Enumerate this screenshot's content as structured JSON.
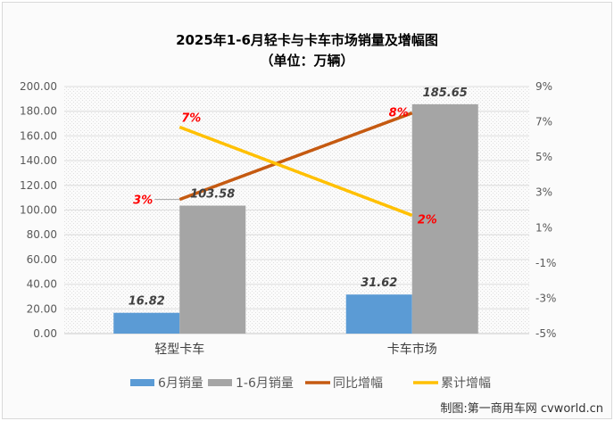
{
  "chart_data": {
    "type": "bar",
    "title": "2025年1-6月轻卡与卡车市场销量及增幅图",
    "subtitle": "（单位：万辆）",
    "categories": [
      "轻型卡车",
      "卡车市场"
    ],
    "ylim": [
      0,
      200
    ],
    "y_ticks": [
      "0.00",
      "20.00",
      "40.00",
      "60.00",
      "80.00",
      "100.00",
      "120.00",
      "140.00",
      "160.00",
      "180.00",
      "200.00"
    ],
    "y2lim": [
      -5,
      9
    ],
    "y2_ticks": [
      "-5%",
      "-3%",
      "-1%",
      "1%",
      "3%",
      "5%",
      "7%",
      "9%"
    ],
    "grid": true,
    "legend_position": "bottom",
    "series": [
      {
        "name": "6月销量",
        "kind": "bar",
        "axis": "left",
        "color": "#5b9bd5",
        "values": [
          16.82,
          31.62
        ],
        "labels": [
          "16.82",
          "31.62"
        ]
      },
      {
        "name": "1-6月销量",
        "kind": "bar",
        "axis": "left",
        "color": "#a5a5a5",
        "values": [
          103.58,
          185.65
        ],
        "labels": [
          "103.58",
          "185.65"
        ]
      },
      {
        "name": "同比增幅",
        "kind": "line",
        "axis": "right",
        "color": "#c55a11",
        "values": [
          2.6,
          7.5
        ],
        "labels": [
          "3%",
          "8%"
        ]
      },
      {
        "name": "累计增幅",
        "kind": "line",
        "axis": "right",
        "color": "#ffc000",
        "values": [
          6.7,
          1.7
        ],
        "labels": [
          "7%",
          "2%"
        ]
      }
    ]
  },
  "credit": "制图:第一商用车网 cvworld.cn"
}
